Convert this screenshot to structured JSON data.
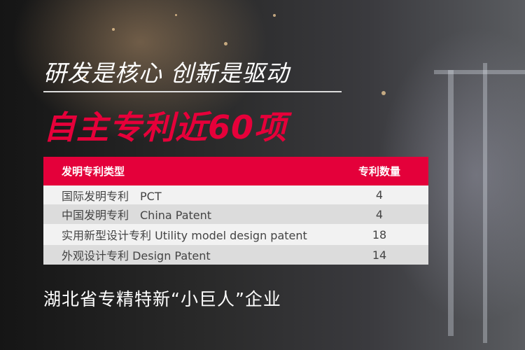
{
  "headline": "研发是核心 创新是驱动",
  "subheadline": "自主专利近60项",
  "table": {
    "headers": [
      "发明专利类型",
      "专利数量"
    ],
    "rows": [
      {
        "type": "国际发明专利　PCT",
        "count": "4"
      },
      {
        "type": "中国发明专利　China Patent",
        "count": "4"
      },
      {
        "type": "实用新型设计专利  Utility model design patent",
        "count": "18"
      },
      {
        "type": "外观设计专利  Design Patent",
        "count": "14"
      }
    ]
  },
  "footer": "湖北省专精特新“小巨人”企业",
  "colors": {
    "accent": "#e4003a"
  }
}
